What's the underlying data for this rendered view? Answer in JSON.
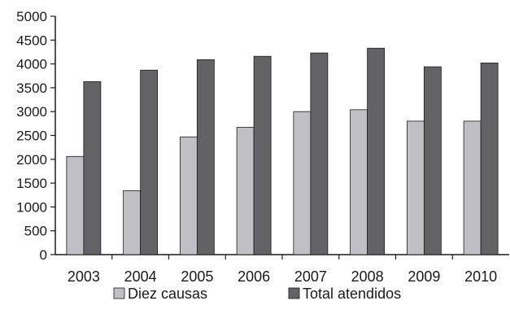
{
  "chart_data": {
    "type": "bar",
    "title": "",
    "xlabel": "",
    "ylabel": "",
    "categories": [
      "2003",
      "2004",
      "2005",
      "2006",
      "2007",
      "2008",
      "2009",
      "2010"
    ],
    "series": [
      {
        "name": "Diez causas",
        "color": "#c0c0c4",
        "values": [
          2060,
          1340,
          2470,
          2670,
          3000,
          3040,
          2800,
          2800
        ]
      },
      {
        "name": "Total atendidos",
        "color": "#636366",
        "values": [
          3630,
          3870,
          4090,
          4160,
          4230,
          4330,
          3940,
          4020
        ]
      }
    ],
    "yticks": [
      "0",
      "500",
      "1000",
      "1500",
      "2000",
      "2500",
      "3000",
      "3500",
      "4000",
      "4500",
      "5000"
    ],
    "ylim": [
      0,
      5000
    ],
    "grid": false,
    "legend_position": "bottom"
  }
}
